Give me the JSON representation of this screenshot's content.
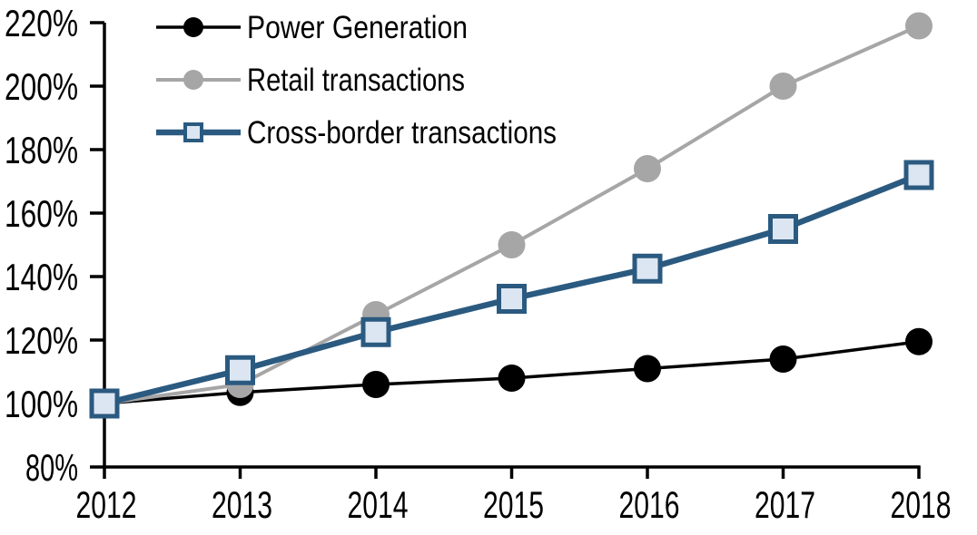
{
  "chart_data": {
    "type": "line",
    "title": "",
    "xlabel": "",
    "ylabel": "",
    "x": [
      2012,
      2013,
      2014,
      2015,
      2016,
      2017,
      2018
    ],
    "xtick_labels": [
      "2012",
      "2013",
      "2014",
      "2015",
      "2016",
      "2017",
      "2018"
    ],
    "ylim": [
      80,
      220
    ],
    "ytick_step": 20,
    "ytick_labels": [
      "80%",
      "100%",
      "120%",
      "140%",
      "160%",
      "180%",
      "200%",
      "220%"
    ],
    "grid": false,
    "legend_position": "top-left",
    "axis_color": "#000000",
    "background_color": "#ffffff",
    "series": [
      {
        "name": "Power Generation",
        "values": [
          100,
          103.5,
          106,
          108,
          111,
          114,
          119.5
        ],
        "color": "#000000",
        "marker": "circle",
        "marker_fill": "#000000",
        "line_width": 3.5
      },
      {
        "name": "Retail transactions",
        "values": [
          100,
          106,
          128,
          150,
          174,
          200,
          219
        ],
        "color": "#a6a6a6",
        "marker": "circle",
        "marker_fill": "#a6a6a6",
        "line_width": 4
      },
      {
        "name": "Cross-border transactions",
        "values": [
          100,
          110.5,
          122.5,
          133,
          142.5,
          155,
          172
        ],
        "color": "#2b5a80",
        "marker": "square",
        "marker_fill": "#dce6f2",
        "line_width": 6.5
      }
    ]
  }
}
